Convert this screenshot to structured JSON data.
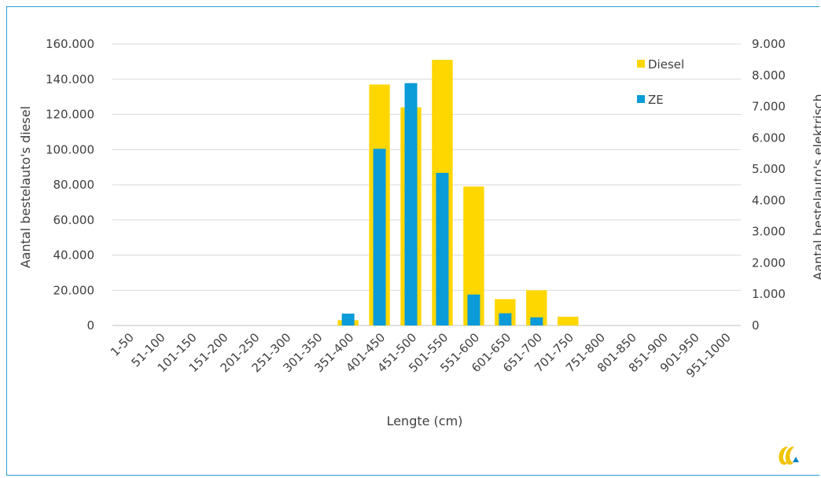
{
  "chart_data": {
    "type": "bar",
    "title": "",
    "xlabel": "Lengte (cm)",
    "ylabel": "Aantal bestelauto's diesel",
    "y2label": "Aantal bestelauto's elektrisch",
    "categories": [
      "1-50",
      "51-100",
      "101-150",
      "151-200",
      "201-250",
      "251-300",
      "301-350",
      "351-400",
      "401-450",
      "451-500",
      "501-550",
      "551-600",
      "601-650",
      "651-700",
      "701-750",
      "751-800",
      "801-850",
      "851-900",
      "901-950",
      "951-1000"
    ],
    "series": [
      {
        "name": "Diesel",
        "axis": "left",
        "color": "#ffd700",
        "values": [
          0,
          0,
          0,
          0,
          0,
          0,
          0,
          3000,
          137000,
          124000,
          151000,
          79000,
          15000,
          20000,
          5000,
          0,
          0,
          0,
          0,
          0
        ]
      },
      {
        "name": "ZE",
        "axis": "right",
        "color": "#0a9bd8",
        "values": [
          0,
          0,
          0,
          0,
          0,
          0,
          0,
          380,
          5650,
          7750,
          4880,
          990,
          390,
          260,
          0,
          0,
          0,
          0,
          0,
          0
        ]
      }
    ],
    "ylim": [
      0,
      160000
    ],
    "y2lim": [
      0,
      9000
    ],
    "yticks": [
      "0",
      "20.000",
      "40.000",
      "60.000",
      "80.000",
      "100.000",
      "120.000",
      "140.000",
      "160.000"
    ],
    "y2ticks": [
      "0",
      "1.000",
      "2.000",
      "3.000",
      "4.000",
      "5.000",
      "6.000",
      "7.000",
      "8.000",
      "9.000"
    ],
    "grid": true,
    "legend_position": "top-right"
  },
  "legend": {
    "diesel": "Diesel",
    "ze": "ZE"
  },
  "logo_icon": "brand-logo-icon"
}
